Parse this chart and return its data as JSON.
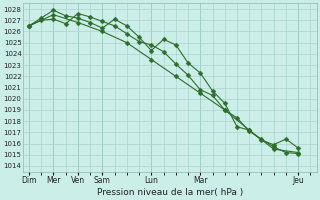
{
  "xlabel": "Pression niveau de la mer( hPa )",
  "bg_color": "#cceee8",
  "grid_color_major": "#aad4ce",
  "grid_color_minor": "#c0e4de",
  "line_color": "#2d6e2d",
  "ylim": [
    1013.5,
    1028.5
  ],
  "yticks": [
    1014,
    1015,
    1016,
    1017,
    1018,
    1019,
    1020,
    1021,
    1022,
    1023,
    1024,
    1025,
    1026,
    1027,
    1028
  ],
  "vline_positions": [
    0,
    4,
    8,
    12,
    20,
    28,
    44
  ],
  "xtick_positions": [
    0,
    4,
    8,
    12,
    20,
    28,
    44
  ],
  "xtick_labels": [
    "Dim",
    "Mer",
    "Ven",
    "Sam",
    "Lun",
    "Mar",
    "Jeu"
  ],
  "xlim": [
    -1,
    47
  ],
  "series1_x": [
    0,
    2,
    4,
    6,
    8,
    10,
    12,
    14,
    16,
    18,
    20,
    22,
    24,
    26,
    28,
    30,
    32,
    34,
    36,
    38,
    40,
    42,
    44
  ],
  "series1_y": [
    1026.5,
    1027.0,
    1027.1,
    1026.7,
    1027.6,
    1027.3,
    1026.9,
    1026.5,
    1025.8,
    1025.1,
    1024.8,
    1024.2,
    1023.1,
    1022.1,
    1020.8,
    1020.3,
    1019.0,
    1018.3,
    1017.1,
    1016.4,
    1015.7,
    1015.2,
    1015.1
  ],
  "series2_x": [
    0,
    2,
    4,
    6,
    8,
    10,
    12,
    14,
    16,
    18,
    20,
    22,
    24,
    26,
    28,
    30,
    32,
    34,
    36,
    38,
    40,
    42,
    44
  ],
  "series2_y": [
    1026.5,
    1027.2,
    1027.9,
    1027.4,
    1027.2,
    1026.8,
    1026.3,
    1027.1,
    1026.5,
    1025.5,
    1024.3,
    1025.3,
    1024.8,
    1023.2,
    1022.3,
    1020.7,
    1019.6,
    1017.5,
    1017.2,
    1016.3,
    1015.9,
    1016.4,
    1015.6
  ],
  "series3_x": [
    0,
    4,
    8,
    12,
    16,
    20,
    24,
    28,
    32,
    36,
    40,
    44
  ],
  "series3_y": [
    1026.5,
    1027.5,
    1026.8,
    1026.0,
    1025.0,
    1023.5,
    1022.0,
    1020.5,
    1019.0,
    1017.2,
    1015.5,
    1015.2
  ]
}
